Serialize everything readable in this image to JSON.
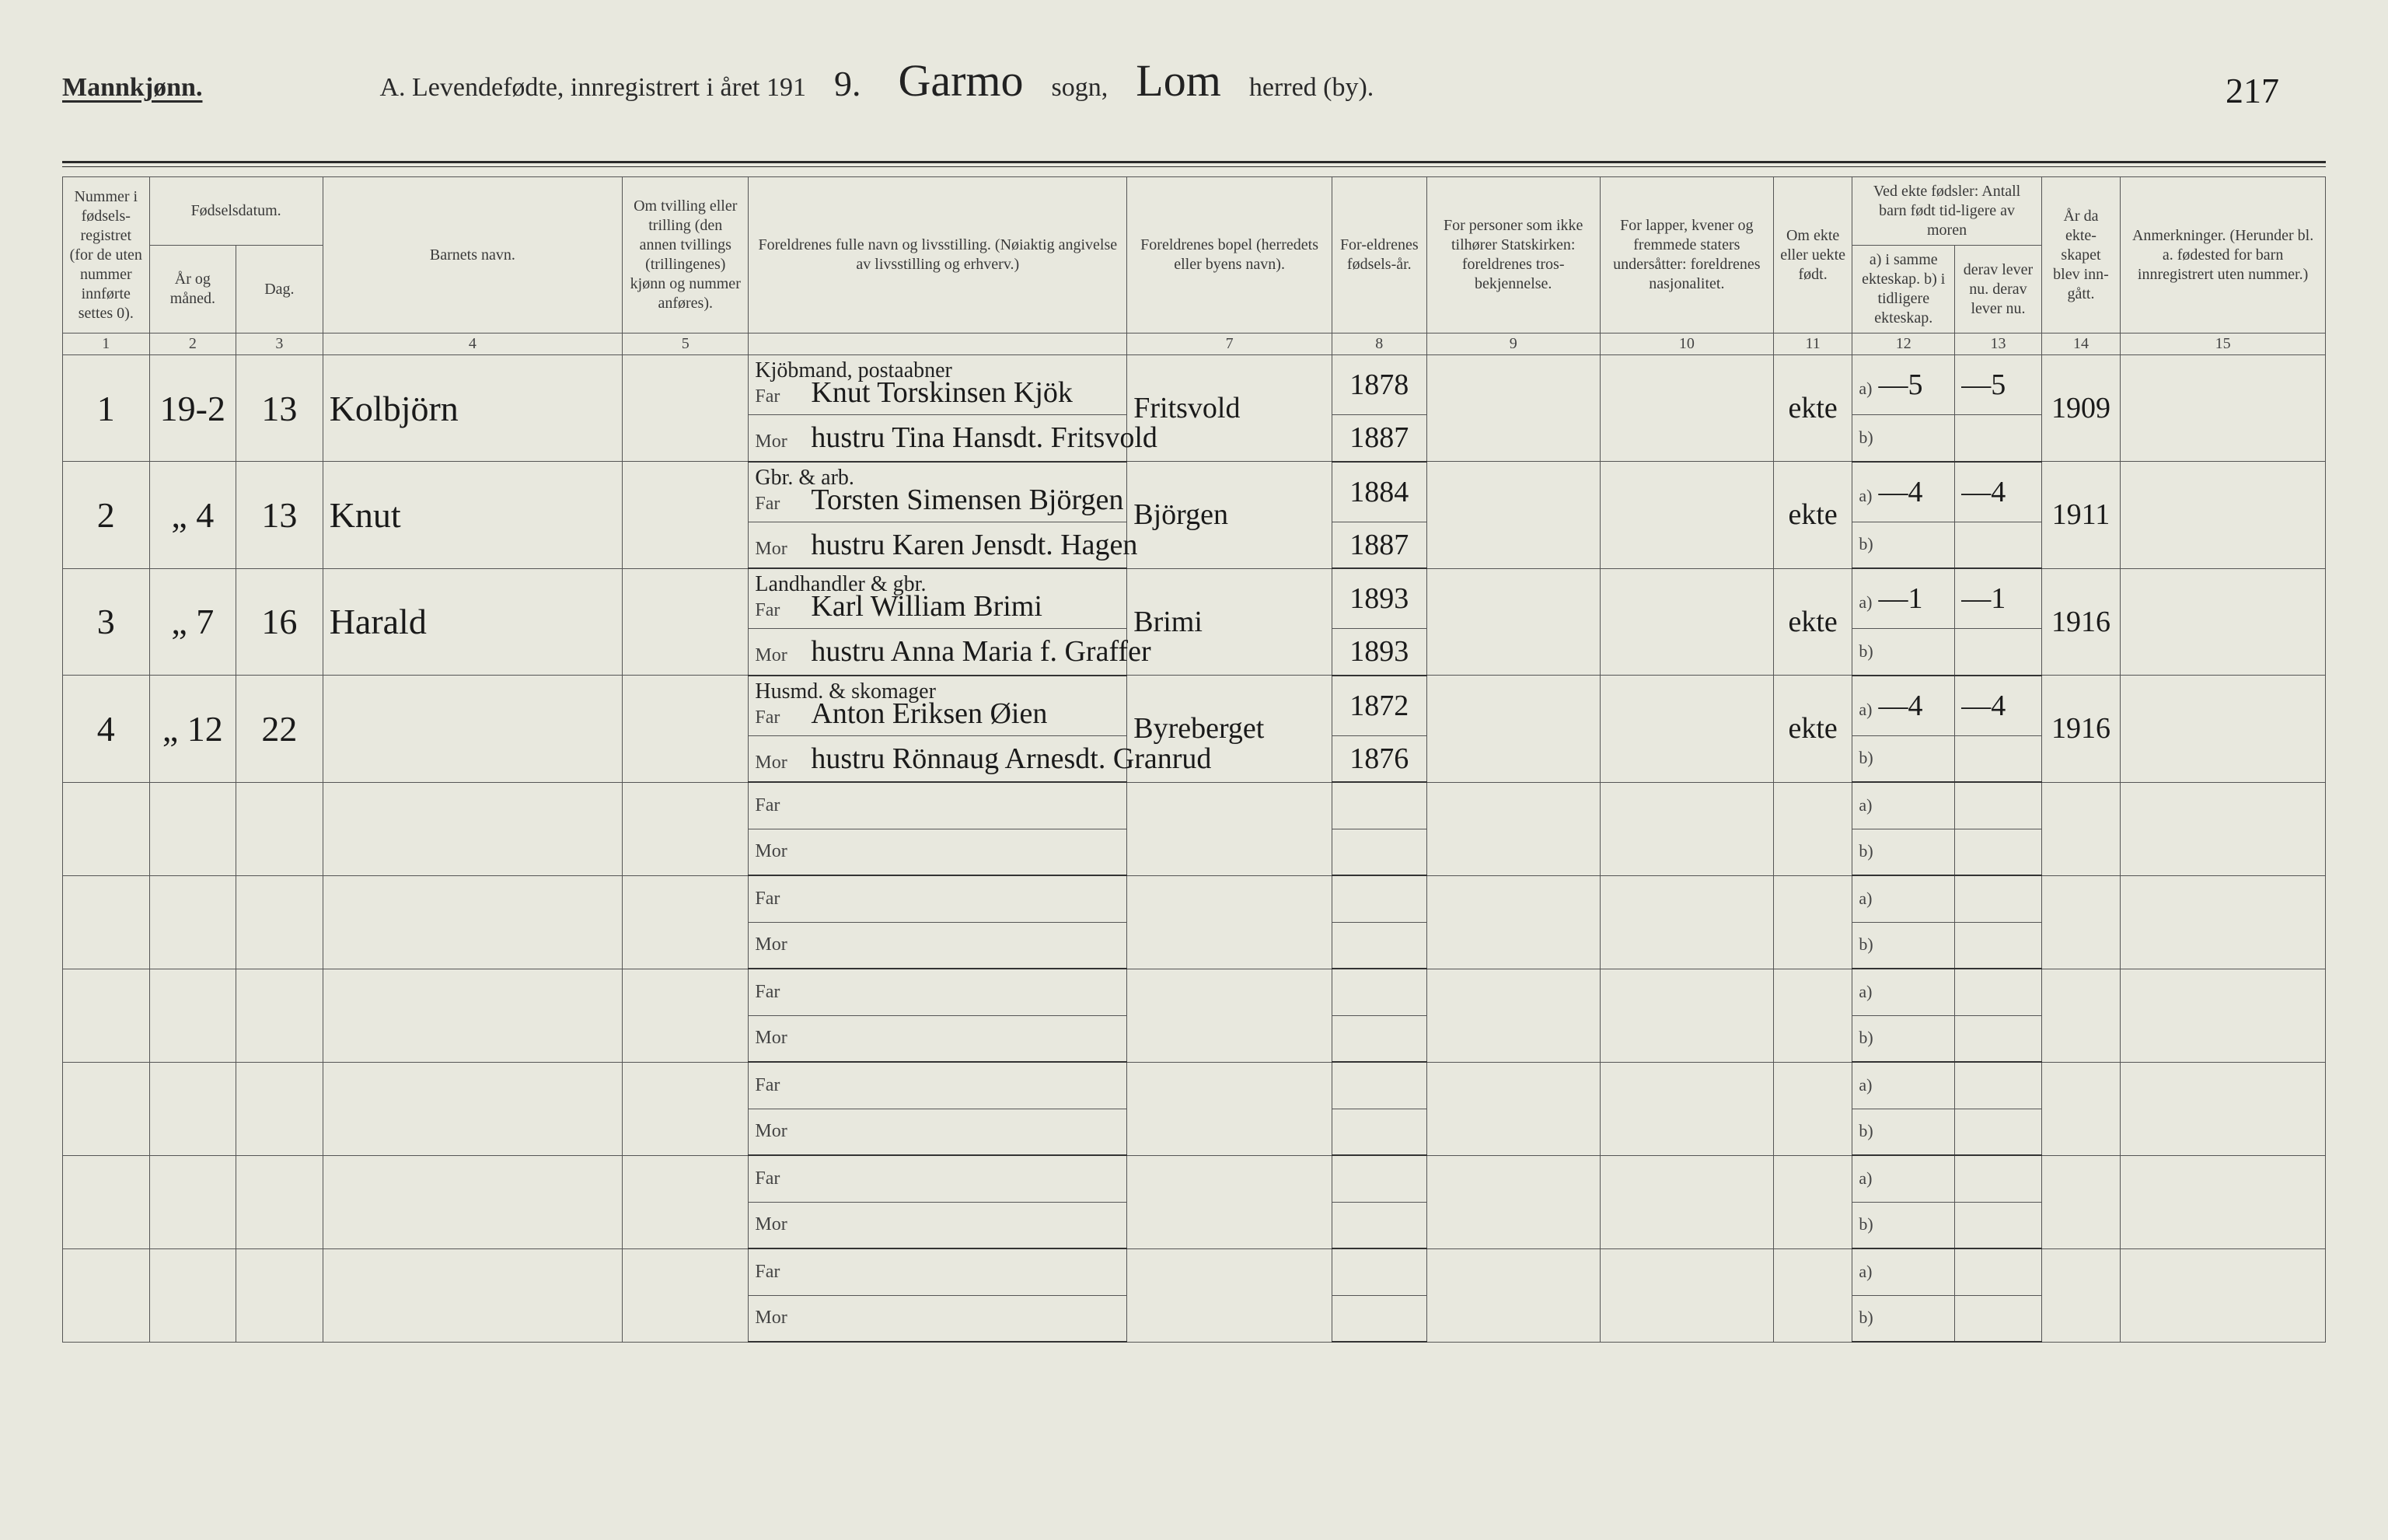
{
  "page_number_hand": "217",
  "header": {
    "gender_label": "Mannkjønn.",
    "title_prefix": "A.  Levendefødte, innregistrert i året 191",
    "year_digit_hand": "9.",
    "sogn_hand": "Garmo",
    "sogn_label": "sogn,",
    "herred_hand": "Lom",
    "herred_label": "herred (by)."
  },
  "columns": {
    "c1": "Nummer i fødsels-registret (for de uten nummer innførte settes 0).",
    "c2_group": "Fødselsdatum.",
    "c2": "År og måned.",
    "c3": "Dag.",
    "c4": "Barnets navn.",
    "c5": "Om tvilling eller trilling (den annen tvillings (trillingenes) kjønn og nummer anføres).",
    "c6": "Foreldrenes fulle navn og livsstilling. (Nøiaktig angivelse av livsstilling og erhverv.)",
    "c7": "Foreldrenes bopel (herredets eller byens navn).",
    "c8": "For-eldrenes fødsels-år.",
    "c9": "For personer som ikke tilhører Statskirken: foreldrenes tros-bekjennelse.",
    "c10": "For lapper, kvener og fremmede staters undersåtter: foreldrenes nasjonalitet.",
    "c11": "Om ekte eller uekte født.",
    "c12_13_group": "Ved ekte fødsler: Antall barn født tid-ligere av moren",
    "c12": "a) i samme ekteskap.  b) i tidligere ekteskap.",
    "c13": "derav lever nu.  derav lever nu.",
    "c14": "År da ekte-skapet blev inn-gått.",
    "c15": "Anmerkninger. (Herunder bl. a. fødested for barn innregistrert uten nummer.)"
  },
  "colnums": [
    "1",
    "2",
    "3",
    "4",
    "5",
    "",
    "7",
    "8",
    "9",
    "10",
    "11",
    "12",
    "13",
    "14",
    "15"
  ],
  "far_label": "Far",
  "mor_label": "Mor",
  "ab_a": "a)",
  "ab_b": "b)",
  "entries": [
    {
      "num": "1",
      "month": "19-2",
      "day": "13",
      "child": "Kolbjörn",
      "far_occ": "Kjöbmand, postaabner",
      "far": "Knut Torskinsen Kjök",
      "mor": "hustru Tina Hansdt. Fritsvold",
      "bopel": "Fritsvold",
      "far_year": "1878",
      "mor_year": "1887",
      "ekte": "ekte",
      "a": "—5",
      "derav": "—5",
      "year": "1909"
    },
    {
      "num": "2",
      "month": "„  4",
      "day": "13",
      "child": "Knut",
      "far_occ": "Gbr. & arb.",
      "far": "Torsten Simensen Björgen",
      "mor": "hustru Karen Jensdt. Hagen",
      "bopel": "Björgen",
      "far_year": "1884",
      "mor_year": "1887",
      "ekte": "ekte",
      "a": "—4",
      "derav": "—4",
      "year": "1911"
    },
    {
      "num": "3",
      "month": "„  7",
      "day": "16",
      "child": "Harald",
      "far_occ": "Landhandler & gbr.",
      "far": "Karl William Brimi",
      "mor": "hustru Anna Maria f. Graffer",
      "bopel": "Brimi",
      "far_year": "1893",
      "mor_year": "1893",
      "ekte": "ekte",
      "a": "—1",
      "derav": "—1",
      "year": "1916"
    },
    {
      "num": "4",
      "month": "„ 12",
      "day": "22",
      "child": "",
      "far_occ": "Husmd. & skomager",
      "far": "Anton Eriksen Øien",
      "mor": "hustru Rönnaug Arnesdt. Granrud",
      "bopel": "Byreberget",
      "far_year": "1872",
      "mor_year": "1876",
      "ekte": "ekte",
      "a": "—4",
      "derav": "—4",
      "year": "1916"
    }
  ],
  "empty_rows": 6,
  "colors": {
    "paper": "#e8e8de",
    "ink": "#2a2a2a",
    "rule": "#555555",
    "hand": "#1a1a1a"
  }
}
